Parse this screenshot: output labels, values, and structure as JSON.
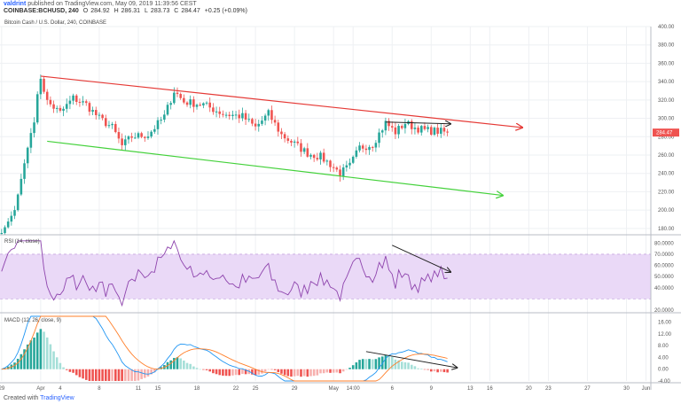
{
  "header": {
    "user": "valdrint",
    "published": "published on TradingView.com, May 09, 2019 11:39:56 CEST",
    "symbol_line": "COINBASE:BCHUSD, 240",
    "ohlc": [
      "284.47",
      "284.92",
      "286.31",
      "283.73",
      "284.47"
    ],
    "ohlc_labels": [
      "",
      "O",
      "H",
      "L",
      "C"
    ],
    "change": "+0.25 (+0.09%)"
  },
  "main_title": "Bitcoin Cash / U.S. Dollar, 240, COINBASE",
  "rsi_title": "RSI (14, close)",
  "macd_title": "MACD (12, 26, close, 9)",
  "footer": {
    "prefix": "Created with",
    "brand": "TradingView"
  },
  "colors": {
    "up": "#26a69a",
    "down": "#ef5350",
    "channel_top": "#e53935",
    "channel_bottom": "#43d13a",
    "rsi_line": "#8e44ad",
    "rsi_band": "#ead9f7",
    "macd_line": "#2196f3",
    "signal_line": "#ff7f2a",
    "arrow": "#222222"
  },
  "chart_data": [
    {
      "type": "candlestick",
      "title": "Bitcoin Cash / U.S. Dollar, 240, COINBASE",
      "ylim": [
        175,
        400
      ],
      "y_ticks": [
        180,
        200,
        220,
        240,
        260,
        280,
        300,
        320,
        340,
        360,
        380,
        400
      ],
      "y_tick_labels": [
        "180.00",
        "200.00",
        "220.00",
        "240.00",
        "260.00",
        "280.00",
        "300.00",
        "320.00",
        "340.00",
        "360.00",
        "380.00",
        "400.00"
      ],
      "x_ticks": [
        0,
        12,
        18,
        30,
        42,
        48,
        60,
        72,
        78,
        90,
        102,
        108,
        120,
        132,
        144,
        150,
        162,
        168,
        180,
        192,
        198
      ],
      "x_tick_labels": [
        "29",
        "Apr",
        "4",
        "8",
        "11",
        "15",
        "18",
        "22",
        "25",
        "29",
        "May",
        "14:00",
        "6",
        "9",
        "13",
        "16",
        "20",
        "23",
        "27",
        "30",
        "Jun"
      ],
      "current_price": "284.47",
      "key_points": [
        {
          "i": 0,
          "c": 175
        },
        {
          "i": 4,
          "c": 200
        },
        {
          "i": 8,
          "c": 268
        },
        {
          "i": 10,
          "c": 300
        },
        {
          "i": 12,
          "c": 345
        },
        {
          "i": 14,
          "c": 318
        },
        {
          "i": 18,
          "c": 306
        },
        {
          "i": 22,
          "c": 322
        },
        {
          "i": 26,
          "c": 315
        },
        {
          "i": 30,
          "c": 300
        },
        {
          "i": 34,
          "c": 290
        },
        {
          "i": 37,
          "c": 270
        },
        {
          "i": 40,
          "c": 280
        },
        {
          "i": 45,
          "c": 282
        },
        {
          "i": 50,
          "c": 302
        },
        {
          "i": 53,
          "c": 330
        },
        {
          "i": 56,
          "c": 318
        },
        {
          "i": 62,
          "c": 315
        },
        {
          "i": 68,
          "c": 305
        },
        {
          "i": 74,
          "c": 302
        },
        {
          "i": 78,
          "c": 290
        },
        {
          "i": 82,
          "c": 305
        },
        {
          "i": 86,
          "c": 282
        },
        {
          "i": 90,
          "c": 272
        },
        {
          "i": 94,
          "c": 262
        },
        {
          "i": 98,
          "c": 258
        },
        {
          "i": 101,
          "c": 250
        },
        {
          "i": 104,
          "c": 240
        },
        {
          "i": 107,
          "c": 248
        },
        {
          "i": 110,
          "c": 268
        },
        {
          "i": 114,
          "c": 272
        },
        {
          "i": 118,
          "c": 295
        },
        {
          "i": 121,
          "c": 285
        },
        {
          "i": 124,
          "c": 295
        },
        {
          "i": 127,
          "c": 290
        },
        {
          "i": 130,
          "c": 287
        },
        {
          "i": 134,
          "c": 286
        },
        {
          "i": 137,
          "c": 284.47
        }
      ],
      "channel_upper": [
        [
          12,
          346
        ],
        [
          160,
          290
        ]
      ],
      "channel_lower": [
        [
          14,
          275
        ],
        [
          154,
          216
        ]
      ],
      "resistance_arrow": [
        [
          118,
          296
        ],
        [
          138,
          294
        ]
      ]
    },
    {
      "type": "line",
      "title": "RSI (14, close)",
      "ylim": [
        20,
        85
      ],
      "band": [
        30,
        70
      ],
      "y_ticks": [
        20,
        40,
        50,
        60,
        70,
        80
      ],
      "y_tick_labels": [
        "20.0000",
        "40.0000",
        "50.0000",
        "60.0000",
        "70.0000",
        "80.0000"
      ],
      "divergence_arrow": [
        [
          120,
          78
        ],
        [
          138,
          54
        ]
      ]
    },
    {
      "type": "bar",
      "title": "MACD (12, 26, close, 9)",
      "ylim": [
        -4,
        18
      ],
      "y_ticks": [
        -4,
        0,
        4,
        8,
        12,
        16
      ],
      "y_tick_labels": [
        "-4.00",
        "0.00",
        "4.00",
        "8.00",
        "12.00",
        "16.00"
      ],
      "divergence_arrow": [
        [
          112,
          6
        ],
        [
          140,
          0.5
        ]
      ]
    }
  ]
}
